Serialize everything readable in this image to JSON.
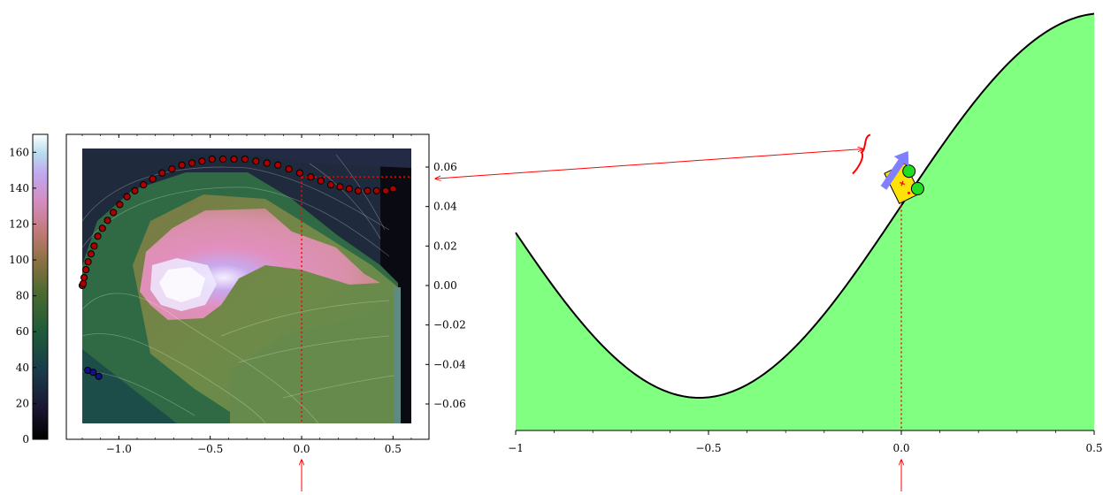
{
  "chart_data": [
    {
      "type": "heatmap",
      "xlim": [
        -1.2,
        0.6
      ],
      "ylim": [
        -0.07,
        0.07
      ],
      "x_ticks": [
        -1.0,
        -0.5,
        0.0,
        0.5
      ],
      "x_tick_labels": [
        "−1.0",
        "−0.5",
        "0.0",
        "0.5"
      ],
      "y_ticks": [
        0.06,
        0.04,
        0.02,
        0.0,
        -0.02,
        -0.04,
        -0.06
      ],
      "y_tick_labels": [
        "0.06",
        "0.04",
        "0.02",
        "0.00",
        "−0.02",
        "−0.04",
        "−0.06"
      ],
      "y_axis_side": "right",
      "colorbar": {
        "range": [
          0,
          170
        ],
        "ticks": [
          0,
          20,
          40,
          60,
          80,
          100,
          120,
          140,
          160
        ],
        "tick_labels": [
          "0",
          "20",
          "40",
          "60",
          "80",
          "100",
          "120",
          "140",
          "160"
        ],
        "colormap": "cubehelix",
        "side": "left"
      },
      "marker_line": {
        "x": 0.0,
        "y": 0.055
      },
      "trajectory_red": [
        [
          -1.2,
          -0.0
        ],
        [
          -1.195,
          0.001
        ],
        [
          -1.19,
          0.004
        ],
        [
          -1.18,
          0.008
        ],
        [
          -1.168,
          0.012
        ],
        [
          -1.152,
          0.016
        ],
        [
          -1.135,
          0.02
        ],
        [
          -1.115,
          0.025
        ],
        [
          -1.09,
          0.029
        ],
        [
          -1.062,
          0.033
        ],
        [
          -1.03,
          0.037
        ],
        [
          -0.995,
          0.041
        ],
        [
          -0.955,
          0.045
        ],
        [
          -0.912,
          0.048
        ],
        [
          -0.865,
          0.051
        ],
        [
          -0.815,
          0.054
        ],
        [
          -0.763,
          0.057
        ],
        [
          -0.71,
          0.059
        ],
        [
          -0.655,
          0.061
        ],
        [
          -0.6,
          0.062
        ],
        [
          -0.545,
          0.063
        ],
        [
          -0.49,
          0.064
        ],
        [
          -0.43,
          0.064
        ],
        [
          -0.37,
          0.064
        ],
        [
          -0.31,
          0.064
        ],
        [
          -0.25,
          0.063
        ],
        [
          -0.19,
          0.062
        ],
        [
          -0.13,
          0.061
        ],
        [
          -0.07,
          0.059
        ],
        [
          -0.01,
          0.057
        ],
        [
          0.05,
          0.055
        ],
        [
          0.105,
          0.053
        ],
        [
          0.16,
          0.051
        ],
        [
          0.21,
          0.05
        ],
        [
          0.26,
          0.049
        ],
        [
          0.31,
          0.048
        ],
        [
          0.36,
          0.048
        ],
        [
          0.41,
          0.048
        ],
        [
          0.46,
          0.048
        ],
        [
          0.5,
          0.049
        ]
      ],
      "trajectory_blue": [
        [
          -1.17,
          -0.043
        ],
        [
          -1.14,
          -0.044
        ],
        [
          -1.11,
          -0.046
        ]
      ]
    },
    {
      "type": "area",
      "xlim": [
        -1,
        0.5
      ],
      "x_ticks": [
        -1,
        -0.5,
        0.0,
        0.5
      ],
      "x_tick_labels": [
        "−1",
        "−0.5",
        "0.0",
        "0.5"
      ],
      "curve": "y = sin(3x)",
      "fill_color": "#80ff80",
      "car_position": 0.0,
      "car_velocity_direction": "up-right"
    }
  ],
  "colors": {
    "fill": "#80ff80",
    "car_body": "#ffe10a",
    "car_wheel": "#22dd22",
    "annotation": "#ff0000",
    "velocity_arrow": "#8080ff",
    "trajectory_red": "#aa0000",
    "trajectory_blue": "#101090"
  }
}
